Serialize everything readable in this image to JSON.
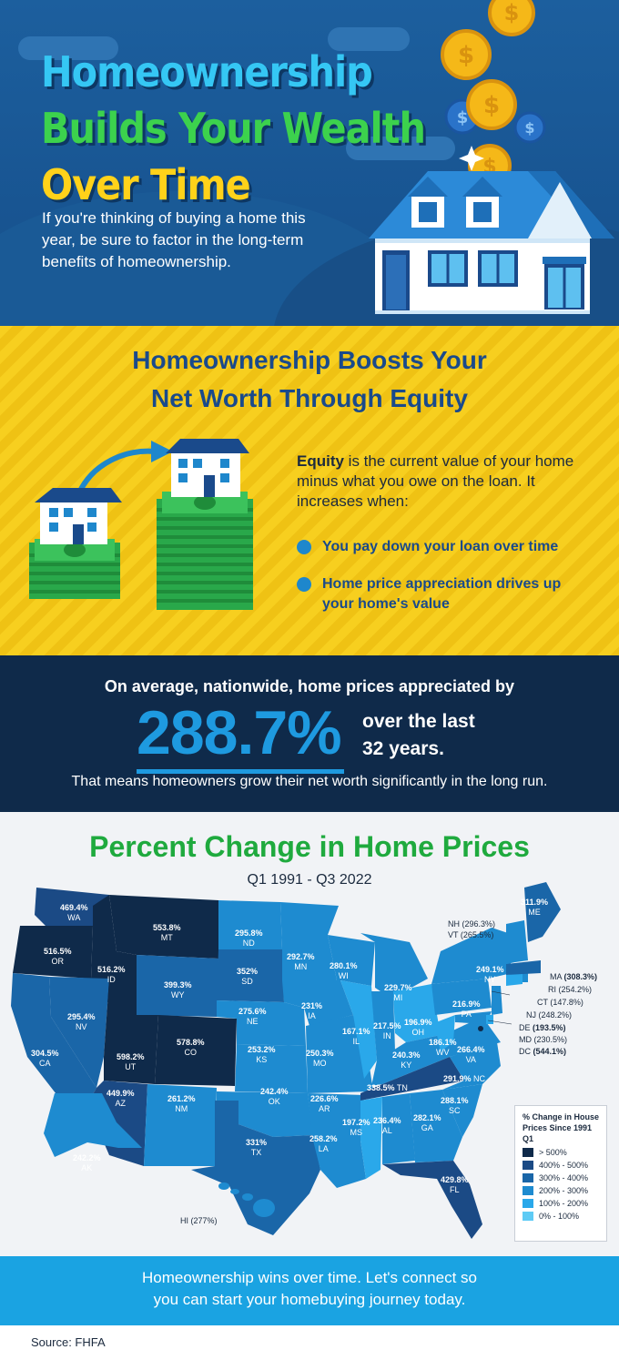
{
  "hero": {
    "title_line1": "Homeownership",
    "title_line2": "Builds Your Wealth",
    "title_line3": "Over Time",
    "subtitle": "If you're thinking of buying a home this year, be sure to factor in the long-term benefits of homeownership."
  },
  "equity": {
    "heading_line1": "Homeownership Boosts Your",
    "heading_line2": "Net Worth Through Equity",
    "term": "Equity",
    "definition": " is the current value of your home minus what you owe on the loan. It increases when:",
    "bullets": [
      "You pay down your loan over time",
      "Home price appreciation drives up your home's value"
    ]
  },
  "stat": {
    "lead": "On average, nationwide, home prices appreciated by",
    "value": "288.7%",
    "trail_line1": "over the last",
    "trail_line2": "32 years.",
    "footer": "That means homeowners grow their net worth significantly in the long run."
  },
  "map": {
    "title": "Percent Change in Home Prices",
    "subtitle": "Q1 1991 - Q3 2022",
    "states": [
      {
        "code": "WA",
        "value": "469.4%"
      },
      {
        "code": "OR",
        "value": "516.5%"
      },
      {
        "code": "ID",
        "value": "516.2%"
      },
      {
        "code": "MT",
        "value": "553.8%"
      },
      {
        "code": "ND",
        "value": "295.8%"
      },
      {
        "code": "MN",
        "value": "292.7%"
      },
      {
        "code": "WI",
        "value": "280.1%"
      },
      {
        "code": "ME",
        "value": "311.9%"
      },
      {
        "code": "NY",
        "value": "249.1%"
      },
      {
        "code": "MI",
        "value": "229.7%"
      },
      {
        "code": "SD",
        "value": "352%"
      },
      {
        "code": "WY",
        "value": "399.3%"
      },
      {
        "code": "NV",
        "value": "295.4%"
      },
      {
        "code": "NE",
        "value": "275.6%"
      },
      {
        "code": "IA",
        "value": "231%"
      },
      {
        "code": "PA",
        "value": "216.9%"
      },
      {
        "code": "OH",
        "value": "196.9%"
      },
      {
        "code": "IN",
        "value": "217.5%"
      },
      {
        "code": "IL",
        "value": "167.1%"
      },
      {
        "code": "CA",
        "value": "304.5%"
      },
      {
        "code": "UT",
        "value": "598.2%"
      },
      {
        "code": "CO",
        "value": "578.8%"
      },
      {
        "code": "KS",
        "value": "253.2%"
      },
      {
        "code": "MO",
        "value": "250.3%"
      },
      {
        "code": "KY",
        "value": "240.3%"
      },
      {
        "code": "WV",
        "value": "186.1%"
      },
      {
        "code": "VA",
        "value": "266.4%"
      },
      {
        "code": "AZ",
        "value": "449.9%"
      },
      {
        "code": "NM",
        "value": "261.2%"
      },
      {
        "code": "OK",
        "value": "242.4%"
      },
      {
        "code": "AR",
        "value": "226.6%"
      },
      {
        "code": "TN",
        "value": "338.5%"
      },
      {
        "code": "NC",
        "value": "291.9%"
      },
      {
        "code": "SC",
        "value": "288.1%"
      },
      {
        "code": "MS",
        "value": "197.2%"
      },
      {
        "code": "AL",
        "value": "236.4%"
      },
      {
        "code": "GA",
        "value": "282.1%"
      },
      {
        "code": "TX",
        "value": "331%"
      },
      {
        "code": "LA",
        "value": "258.2%"
      },
      {
        "code": "FL",
        "value": "429.8%"
      },
      {
        "code": "AK",
        "value": "242.2%"
      }
    ],
    "side_labels": [
      {
        "code": "NH",
        "value": "(296.3%)"
      },
      {
        "code": "VT",
        "value": "(265.5%)"
      },
      {
        "code": "MA",
        "value": "(308.3%)"
      },
      {
        "code": "RI",
        "value": "(254.2%)"
      },
      {
        "code": "CT",
        "value": "(147.8%)"
      },
      {
        "code": "NJ",
        "value": "(248.2%)"
      },
      {
        "code": "DE",
        "value": "(193.5%)"
      },
      {
        "code": "MD",
        "value": "(230.5%)"
      },
      {
        "code": "DC",
        "value": "(544.1%)"
      }
    ],
    "hi_label": "HI (277%)",
    "legend": {
      "title": "% Change in House Prices Since 1991 Q1",
      "items": [
        {
          "label": "> 500%",
          "color": "#0f2a4a"
        },
        {
          "label": "400% - 500%",
          "color": "#1b4a85"
        },
        {
          "label": "300% - 400%",
          "color": "#1a66a8"
        },
        {
          "label": "200% - 300%",
          "color": "#1e8bd0"
        },
        {
          "label": "100% - 200%",
          "color": "#2aa8ea"
        },
        {
          "label": "0% - 100%",
          "color": "#5ecbf5"
        }
      ]
    }
  },
  "cta": {
    "line1": "Homeownership wins over time. Let's connect so",
    "line2": "you can start your homebuying journey today."
  },
  "source": "Source: FHFA"
}
